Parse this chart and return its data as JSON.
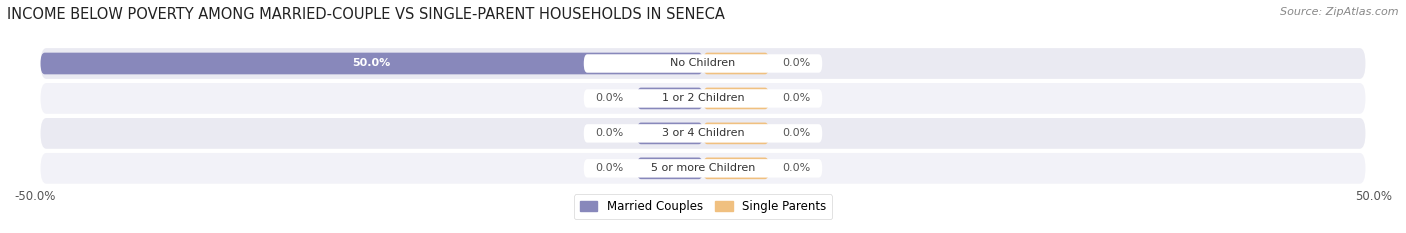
{
  "title": "INCOME BELOW POVERTY AMONG MARRIED-COUPLE VS SINGLE-PARENT HOUSEHOLDS IN SENECA",
  "source": "Source: ZipAtlas.com",
  "categories": [
    "No Children",
    "1 or 2 Children",
    "3 or 4 Children",
    "5 or more Children"
  ],
  "married_values": [
    50.0,
    0.0,
    0.0,
    0.0
  ],
  "single_values": [
    0.0,
    0.0,
    0.0,
    0.0
  ],
  "married_color": "#8888bb",
  "single_color": "#f0c080",
  "row_bg_even": "#eaeaf2",
  "row_bg_odd": "#f2f2f8",
  "label_inside_color": "#ffffff",
  "label_outside_color": "#555555",
  "axis_label_left": "-50.0%",
  "axis_label_right": "50.0%",
  "legend_married": "Married Couples",
  "legend_single": "Single Parents",
  "title_fontsize": 10.5,
  "source_fontsize": 8,
  "label_fontsize": 8,
  "category_fontsize": 8,
  "xlim_min": -50,
  "xlim_max": 50,
  "min_bar_width": 5.0
}
